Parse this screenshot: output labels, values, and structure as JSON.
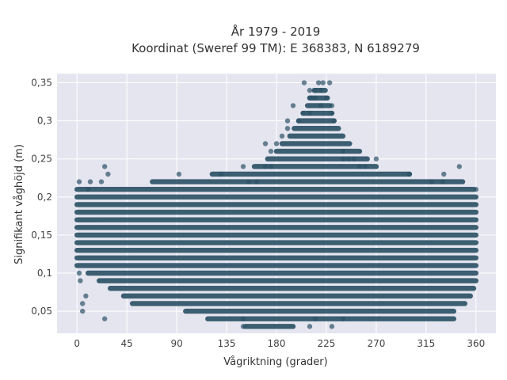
{
  "chart_data": {
    "type": "scatter",
    "title_lines": [
      "År 1979 - 2019",
      "Koordinat (Sweref 99 TM): E 368383, N 6189279"
    ],
    "xlabel": "Vågriktning (grader)",
    "ylabel": "Signifikant våghöjd (m)",
    "xlim": [
      -18,
      378
    ],
    "ylim": [
      0.021,
      0.362
    ],
    "x_ticks": [
      0,
      45,
      90,
      135,
      180,
      225,
      270,
      315,
      360
    ],
    "x_tick_labels": [
      "0",
      "45",
      "90",
      "135",
      "180",
      "225",
      "270",
      "315",
      "360"
    ],
    "y_ticks": [
      0.05,
      0.1,
      0.15,
      0.2,
      0.25,
      0.3,
      0.35
    ],
    "y_tick_labels": [
      "0,05",
      "0,1",
      "0,15",
      "0,2",
      "0,25",
      "0,3",
      "0,35"
    ],
    "grid": true,
    "legend": "none",
    "marker_color": "#2E5266",
    "marker_opacity": 0.7,
    "background_color": "#E5E5F0",
    "series": [
      {
        "x": [
          360,
          150,
          170,
          190,
          210,
          225,
          230,
          250,
          270,
          300,
          330,
          345,
          25,
          28,
          22,
          92,
          130,
          155,
          162,
          218,
          222,
          228,
          205,
          210,
          220,
          240,
          245,
          200,
          232,
          204,
          190,
          175,
          180,
          185,
          175,
          195,
          210,
          230,
          240,
          255,
          220,
          215,
          215,
          212,
          170,
          260,
          300,
          320,
          331,
          2,
          3,
          8,
          5,
          5,
          2,
          12,
          10,
          25,
          150,
          150,
          210,
          215,
          230,
          240
        ],
        "y": [
          0.21,
          0.24,
          0.27,
          0.29,
          0.31,
          0.33,
          0.32,
          0.25,
          0.25,
          0.23,
          0.22,
          0.24,
          0.24,
          0.23,
          0.22,
          0.23,
          0.23,
          0.22,
          0.22,
          0.35,
          0.35,
          0.35,
          0.35,
          0.34,
          0.34,
          0.25,
          0.25,
          0.3,
          0.3,
          0.31,
          0.3,
          0.26,
          0.27,
          0.28,
          0.24,
          0.32,
          0.33,
          0.31,
          0.26,
          0.24,
          0.32,
          0.33,
          0.34,
          0.33,
          0.24,
          0.24,
          0.23,
          0.22,
          0.23,
          0.1,
          0.09,
          0.07,
          0.06,
          0.05,
          0.22,
          0.22,
          0.21,
          0.04,
          0.03,
          0.04,
          0.03,
          0.04,
          0.03,
          0.04
        ]
      }
    ],
    "density_bands": [
      {
        "y": 0.03,
        "x_min": 152,
        "x_max": 195
      },
      {
        "y": 0.04,
        "x_min": 118,
        "x_max": 340
      },
      {
        "y": 0.05,
        "x_min": 98,
        "x_max": 340
      },
      {
        "y": 0.06,
        "x_min": 50,
        "x_max": 350
      },
      {
        "y": 0.07,
        "x_min": 42,
        "x_max": 355
      },
      {
        "y": 0.08,
        "x_min": 30,
        "x_max": 358
      },
      {
        "y": 0.09,
        "x_min": 20,
        "x_max": 360
      },
      {
        "y": 0.1,
        "x_min": 10,
        "x_max": 360
      },
      {
        "y": 0.11,
        "x_min": 0,
        "x_max": 360
      },
      {
        "y": 0.12,
        "x_min": 0,
        "x_max": 360
      },
      {
        "y": 0.13,
        "x_min": 0,
        "x_max": 360
      },
      {
        "y": 0.14,
        "x_min": 0,
        "x_max": 360
      },
      {
        "y": 0.15,
        "x_min": 0,
        "x_max": 360
      },
      {
        "y": 0.16,
        "x_min": 0,
        "x_max": 360
      },
      {
        "y": 0.17,
        "x_min": 0,
        "x_max": 360
      },
      {
        "y": 0.18,
        "x_min": 0,
        "x_max": 360
      },
      {
        "y": 0.19,
        "x_min": 0,
        "x_max": 360
      },
      {
        "y": 0.2,
        "x_min": 0,
        "x_max": 360
      },
      {
        "y": 0.21,
        "x_min": 0,
        "x_max": 358
      },
      {
        "y": 0.22,
        "x_min": 68,
        "x_max": 348
      },
      {
        "y": 0.23,
        "x_min": 122,
        "x_max": 300
      },
      {
        "y": 0.24,
        "x_min": 160,
        "x_max": 270
      },
      {
        "y": 0.25,
        "x_min": 172,
        "x_max": 262
      },
      {
        "y": 0.26,
        "x_min": 180,
        "x_max": 255
      },
      {
        "y": 0.27,
        "x_min": 185,
        "x_max": 246
      },
      {
        "y": 0.28,
        "x_min": 192,
        "x_max": 240
      },
      {
        "y": 0.29,
        "x_min": 196,
        "x_max": 236
      },
      {
        "y": 0.3,
        "x_min": 200,
        "x_max": 232
      },
      {
        "y": 0.31,
        "x_min": 204,
        "x_max": 230
      },
      {
        "y": 0.32,
        "x_min": 208,
        "x_max": 228
      },
      {
        "y": 0.33,
        "x_min": 210,
        "x_max": 226
      },
      {
        "y": 0.34,
        "x_min": 214,
        "x_max": 224
      }
    ]
  }
}
